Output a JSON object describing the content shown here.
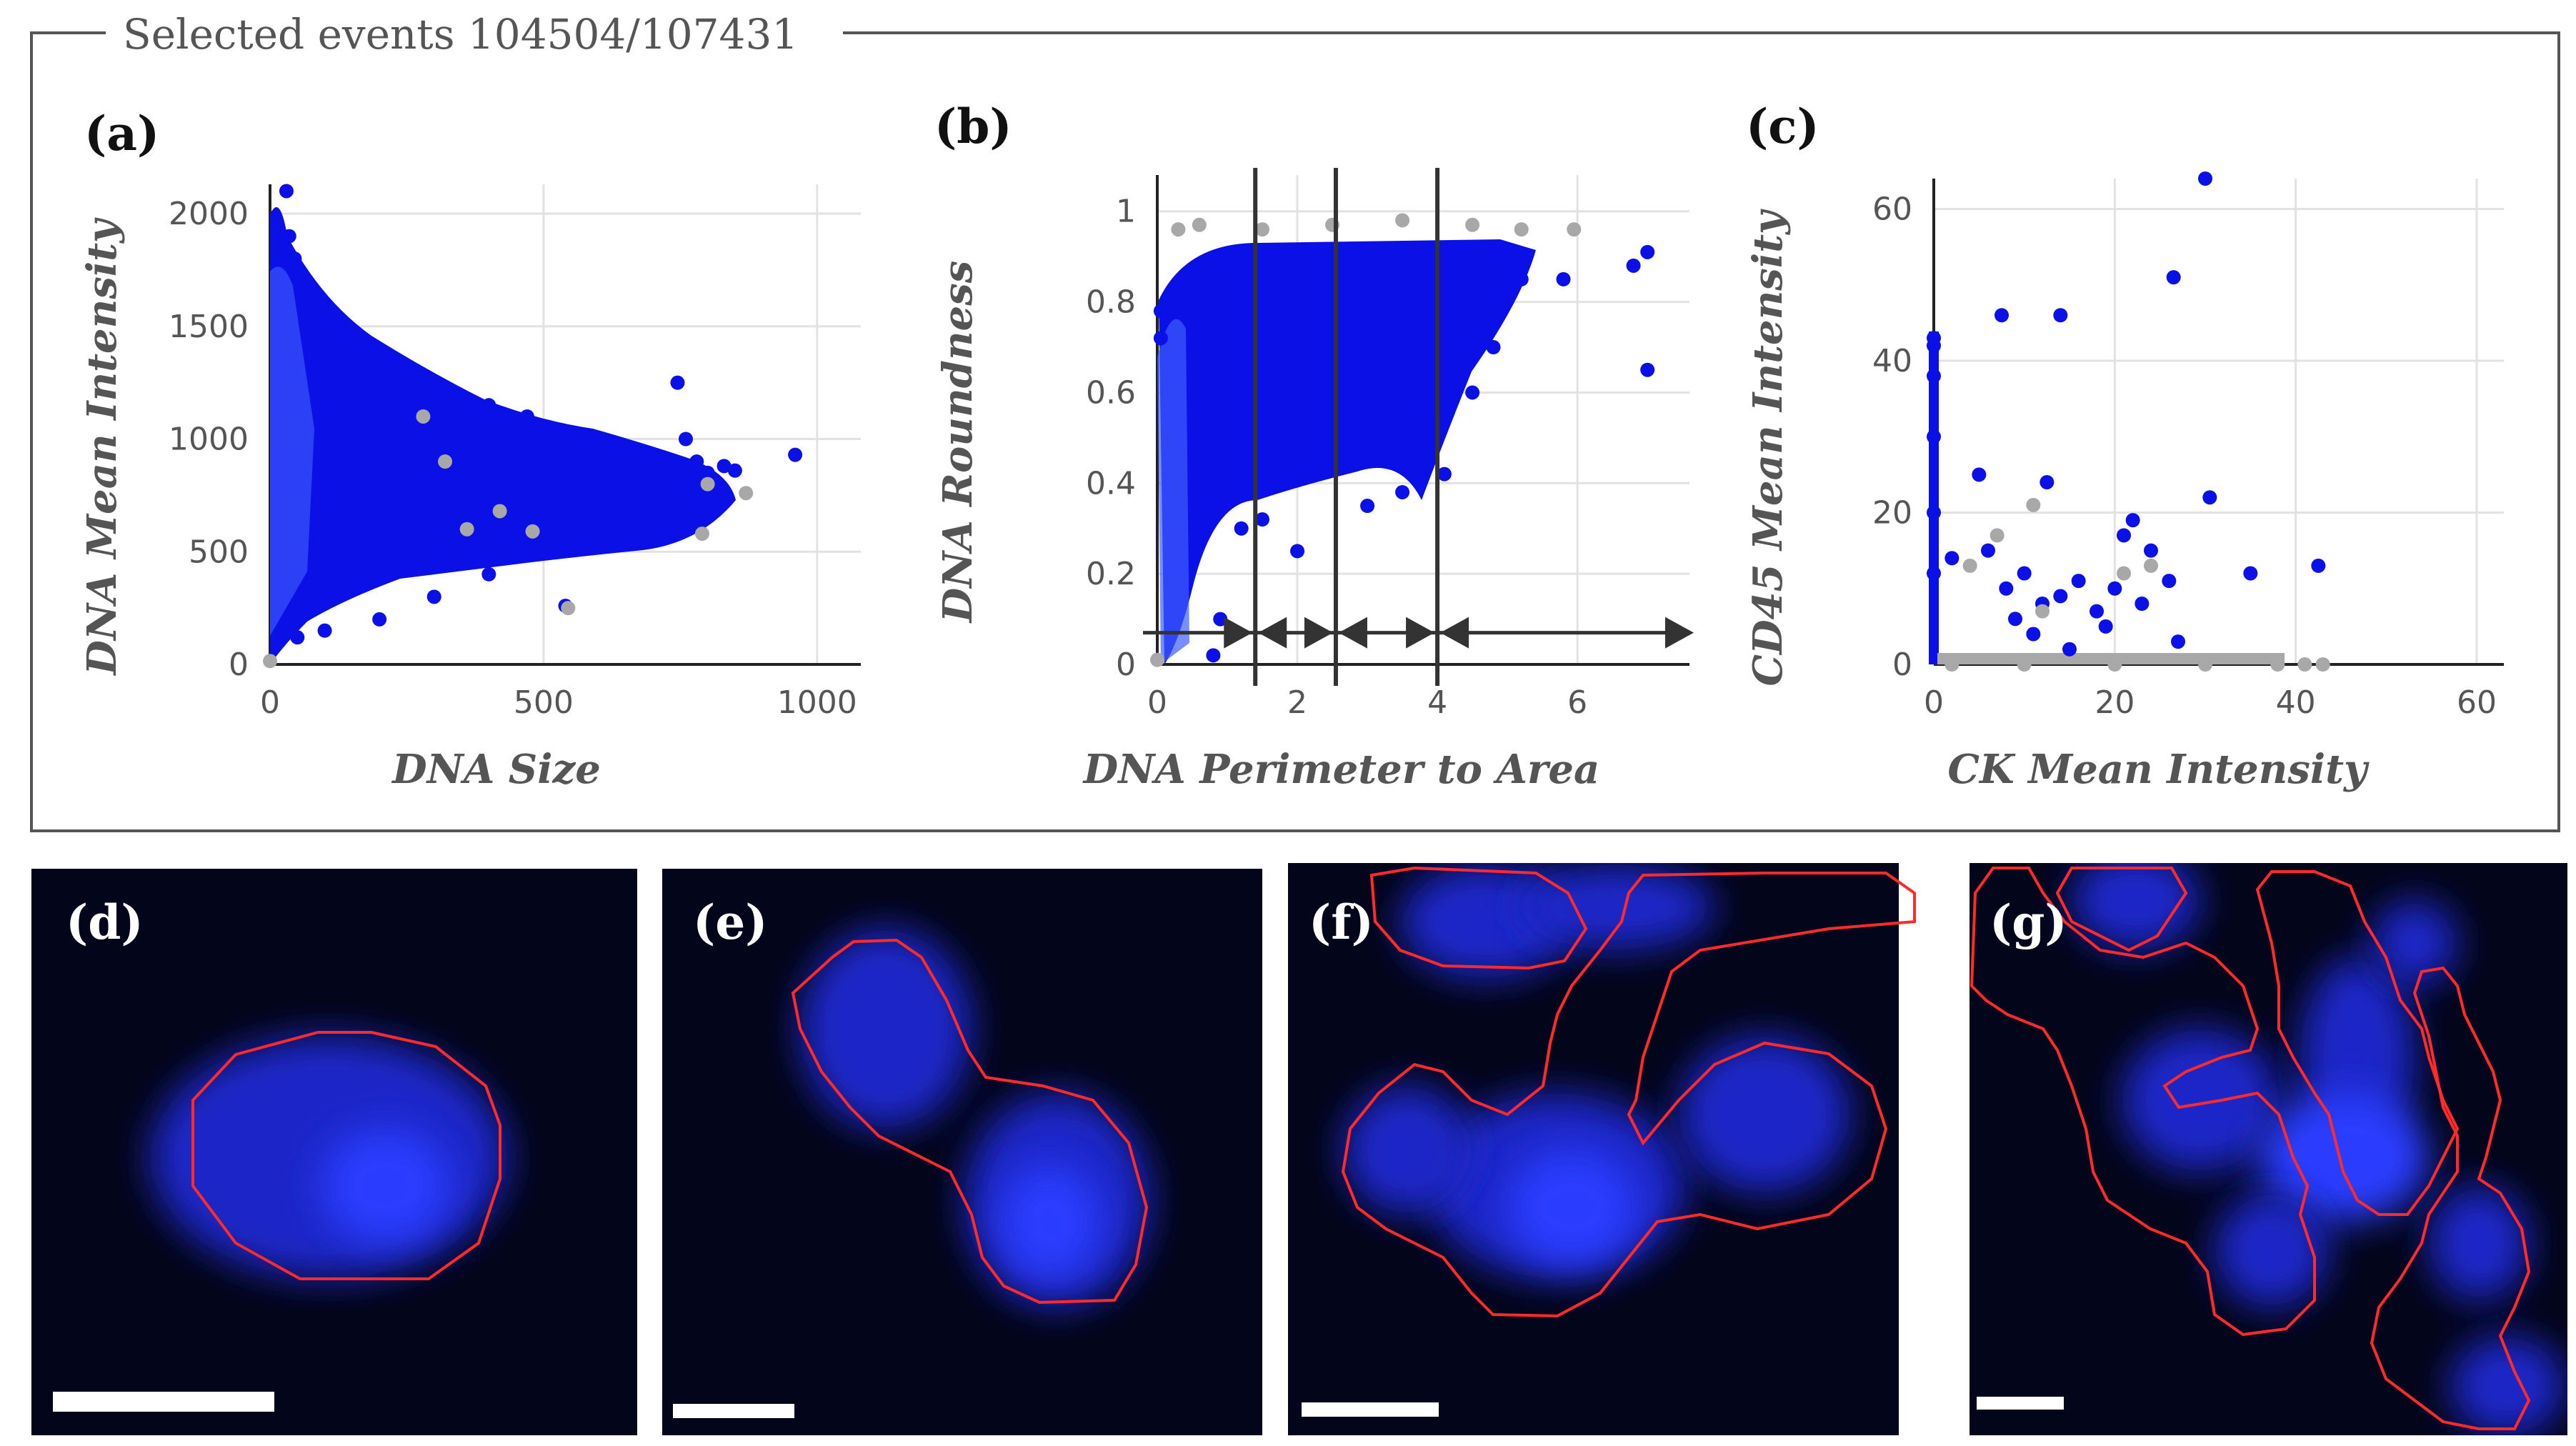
{
  "frame_title": "Selected events 104504/107431",
  "colors": {
    "selected": "#0a10e6",
    "unselected": "#a8a8a8",
    "gate_line": "#333333",
    "outline": "#ff2a2a",
    "panel_bg": "#03051a"
  },
  "chart_data": [
    {
      "label": "(a)",
      "type": "scatter",
      "xlabel": "DNA Size",
      "ylabel": "DNA Mean Intensity",
      "xlim": [
        0,
        1080
      ],
      "ylim": [
        0,
        2130
      ],
      "xticks": [
        0,
        500,
        1000
      ],
      "yticks": [
        0,
        500,
        1000,
        1500,
        2000
      ],
      "grid": true,
      "series": [
        {
          "name": "selected",
          "description": "dense cloud near DNA Size 0-100 spanning intensity 100-2100, tapering to sparse points up to size ~960 around intensity 600-1200",
          "points": [
            [
              30,
              2100
            ],
            [
              35,
              1900
            ],
            [
              45,
              1800
            ],
            [
              60,
              1600
            ],
            [
              90,
              1500
            ],
            [
              140,
              1400
            ],
            [
              200,
              1300
            ],
            [
              260,
              1250
            ],
            [
              330,
              1200
            ],
            [
              400,
              1150
            ],
            [
              470,
              1100
            ],
            [
              520,
              1000
            ],
            [
              560,
              950
            ],
            [
              600,
              900
            ],
            [
              640,
              880
            ],
            [
              700,
              850
            ],
            [
              745,
              1250
            ],
            [
              760,
              1000
            ],
            [
              780,
              900
            ],
            [
              800,
              850
            ],
            [
              830,
              880
            ],
            [
              850,
              860
            ],
            [
              960,
              930
            ],
            [
              540,
              260
            ],
            [
              400,
              400
            ],
            [
              300,
              300
            ],
            [
              200,
              200
            ],
            [
              100,
              150
            ],
            [
              50,
              120
            ]
          ]
        },
        {
          "name": "unselected",
          "points": [
            [
              0,
              15
            ],
            [
              280,
              1100
            ],
            [
              320,
              900
            ],
            [
              360,
              600
            ],
            [
              420,
              680
            ],
            [
              480,
              590
            ],
            [
              545,
              250
            ],
            [
              790,
              580
            ],
            [
              870,
              760
            ],
            [
              800,
              800
            ]
          ]
        }
      ]
    },
    {
      "label": "(b)",
      "type": "scatter",
      "xlabel": "DNA Perimeter to Area",
      "ylabel": "DNA Roundness",
      "xlim": [
        0,
        7.6
      ],
      "ylim": [
        0,
        1.08
      ],
      "xticks": [
        0,
        2,
        4,
        6
      ],
      "yticks": [
        0,
        0.2,
        0.4,
        0.6,
        0.8,
        1
      ],
      "grid": true,
      "gates": [
        1.4,
        2.55,
        4.0
      ],
      "gate_arrow_y": 0.07,
      "series": [
        {
          "name": "selected",
          "description": "narrow vertical band near x 0.6-1.0 from roundness 0 to 0.95, fanning out to x ~5.8 along roundness 0.4-0.95",
          "points": [
            [
              0.05,
              0.78
            ],
            [
              0.05,
              0.72
            ],
            [
              0.35,
              0.83
            ],
            [
              0.8,
              0.02
            ],
            [
              0.9,
              0.1
            ],
            [
              1.0,
              0.45
            ],
            [
              1.2,
              0.3
            ],
            [
              1.5,
              0.32
            ],
            [
              2.0,
              0.25
            ],
            [
              2.5,
              0.45
            ],
            [
              3.0,
              0.35
            ],
            [
              3.5,
              0.38
            ],
            [
              4.1,
              0.42
            ],
            [
              4.5,
              0.6
            ],
            [
              4.8,
              0.7
            ],
            [
              5.2,
              0.85
            ],
            [
              5.8,
              0.85
            ],
            [
              6.8,
              0.88
            ],
            [
              7.0,
              0.91
            ],
            [
              7.0,
              0.65
            ]
          ]
        },
        {
          "name": "unselected",
          "points": [
            [
              0,
              0.01
            ],
            [
              0.3,
              0.96
            ],
            [
              0.6,
              0.97
            ],
            [
              1.5,
              0.96
            ],
            [
              2.5,
              0.97
            ],
            [
              3.5,
              0.98
            ],
            [
              4.5,
              0.97
            ],
            [
              5.2,
              0.96
            ],
            [
              5.95,
              0.96
            ]
          ]
        }
      ]
    },
    {
      "label": "(c)",
      "type": "scatter",
      "xlabel": "CK Mean Intensity",
      "ylabel": "CD45 Mean Intensity",
      "xlim": [
        0,
        63
      ],
      "ylim": [
        0,
        64
      ],
      "xticks": [
        0,
        20,
        40,
        60
      ],
      "yticks": [
        0,
        20,
        40,
        60
      ],
      "grid": true,
      "series": [
        {
          "name": "selected",
          "points": [
            [
              0,
              43
            ],
            [
              0,
              42
            ],
            [
              0,
              38
            ],
            [
              0,
              30
            ],
            [
              0,
              20
            ],
            [
              0,
              12
            ],
            [
              7.5,
              46
            ],
            [
              14,
              46
            ],
            [
              26.5,
              51
            ],
            [
              30,
              64
            ],
            [
              30.5,
              22
            ],
            [
              35,
              12
            ],
            [
              42.5,
              13
            ],
            [
              5,
              25
            ],
            [
              12.5,
              24
            ],
            [
              2,
              14
            ],
            [
              6,
              15
            ],
            [
              8,
              10
            ],
            [
              10,
              12
            ],
            [
              12,
              8
            ],
            [
              14,
              9
            ],
            [
              16,
              11
            ],
            [
              18,
              7
            ],
            [
              20,
              10
            ],
            [
              21,
              17
            ],
            [
              22,
              19
            ],
            [
              24,
              15
            ],
            [
              26,
              11
            ],
            [
              27,
              3
            ],
            [
              9,
              6
            ],
            [
              11,
              4
            ],
            [
              15,
              2
            ],
            [
              19,
              5
            ],
            [
              23,
              8
            ]
          ]
        },
        {
          "name": "unselected",
          "description": "dense line along CD45 = 0 from CK 0 to ~43",
          "points": [
            [
              2,
              0
            ],
            [
              10,
              0
            ],
            [
              20,
              0
            ],
            [
              30,
              0
            ],
            [
              38,
              0
            ],
            [
              41,
              0
            ],
            [
              43,
              0
            ],
            [
              11,
              21
            ],
            [
              4,
              13
            ],
            [
              7,
              17
            ],
            [
              21,
              12
            ],
            [
              12,
              7
            ],
            [
              24,
              13
            ]
          ]
        }
      ]
    }
  ],
  "image_panels": [
    {
      "label": "(d)"
    },
    {
      "label": "(e)"
    },
    {
      "label": "(f)"
    },
    {
      "label": "(g)"
    }
  ]
}
